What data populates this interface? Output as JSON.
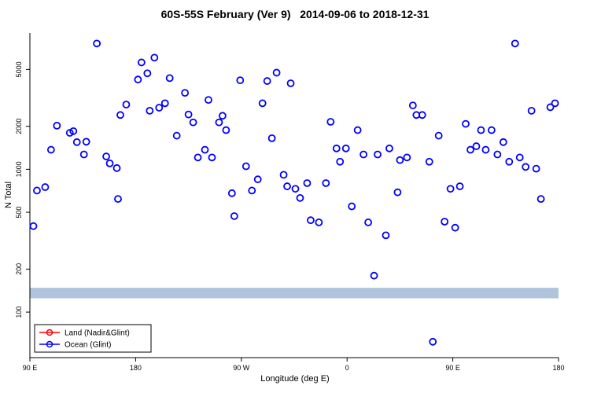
{
  "chart_data": {
    "type": "scatter",
    "title": "60S-55S February (Ver 9)   2014-09-06 to 2018-12-31",
    "xlabel": "Longitude (deg E)",
    "ylabel": "N Total",
    "x_scale": "linear (longitude unwrapped eastward from 90E)",
    "xlim": [
      90,
      540
    ],
    "x_ticks": [
      {
        "value": 90,
        "label": "90 E"
      },
      {
        "value": 180,
        "label": "180"
      },
      {
        "value": 270,
        "label": "90 W"
      },
      {
        "value": 360,
        "label": "0"
      },
      {
        "value": 450,
        "label": "90 E"
      },
      {
        "value": 540,
        "label": "180"
      }
    ],
    "y_scale": "log",
    "ylim": [
      48,
      9000
    ],
    "y_ticks": [
      100,
      200,
      500,
      1000,
      2000,
      5000
    ],
    "grid": false,
    "band": {
      "y_min": 125,
      "y_max": 148,
      "color": "#b0c4de"
    },
    "legend": {
      "position": "bottom-left",
      "entries": [
        {
          "label": "Land (Nadir&Glint)",
          "color": "#ff0000",
          "marker": "open-circle-on-line"
        },
        {
          "label": "Ocean (Glint)",
          "color": "#0000ff",
          "marker": "open-circle-on-line"
        }
      ]
    },
    "series": [
      {
        "name": "Land (Nadir&Glint)",
        "color": "#ff0000",
        "points": []
      },
      {
        "name": "Ocean (Glint)",
        "color": "#0000ff",
        "points": [
          [
            93,
            400
          ],
          [
            96,
            710
          ],
          [
            103,
            750
          ],
          [
            108,
            1370
          ],
          [
            113,
            2020
          ],
          [
            124,
            1800
          ],
          [
            127,
            1850
          ],
          [
            130,
            1550
          ],
          [
            136,
            1270
          ],
          [
            138,
            1560
          ],
          [
            147,
            7600
          ],
          [
            155,
            1230
          ],
          [
            158,
            1100
          ],
          [
            164,
            1020
          ],
          [
            165,
            620
          ],
          [
            167,
            2400
          ],
          [
            172,
            2840
          ],
          [
            182,
            4250
          ],
          [
            185,
            5600
          ],
          [
            190,
            4700
          ],
          [
            192,
            2570
          ],
          [
            196,
            6050
          ],
          [
            200,
            2700
          ],
          [
            205,
            2900
          ],
          [
            209,
            4350
          ],
          [
            215,
            1720
          ],
          [
            222,
            3430
          ],
          [
            225,
            2420
          ],
          [
            229,
            2130
          ],
          [
            233,
            1210
          ],
          [
            239,
            1370
          ],
          [
            242,
            3060
          ],
          [
            245,
            1210
          ],
          [
            251,
            2130
          ],
          [
            254,
            2370
          ],
          [
            257,
            1880
          ],
          [
            262,
            680
          ],
          [
            264,
            470
          ],
          [
            269,
            4200
          ],
          [
            274,
            1050
          ],
          [
            279,
            710
          ],
          [
            284,
            850
          ],
          [
            288,
            2900
          ],
          [
            292,
            4150
          ],
          [
            296,
            1650
          ],
          [
            300,
            4750
          ],
          [
            306,
            915
          ],
          [
            309,
            760
          ],
          [
            312,
            4000
          ],
          [
            316,
            730
          ],
          [
            320,
            630
          ],
          [
            326,
            800
          ],
          [
            329,
            440
          ],
          [
            336,
            425
          ],
          [
            342,
            800
          ],
          [
            346,
            2150
          ],
          [
            351,
            1400
          ],
          [
            354,
            1130
          ],
          [
            359,
            1400
          ],
          [
            364,
            550
          ],
          [
            369,
            1880
          ],
          [
            374,
            1270
          ],
          [
            378,
            425
          ],
          [
            383,
            180
          ],
          [
            386,
            1270
          ],
          [
            393,
            345
          ],
          [
            396,
            1400
          ],
          [
            403,
            690
          ],
          [
            405,
            1160
          ],
          [
            411,
            1210
          ],
          [
            416,
            2800
          ],
          [
            419,
            2400
          ],
          [
            424,
            2400
          ],
          [
            430,
            1130
          ],
          [
            433,
            62
          ],
          [
            438,
            1720
          ],
          [
            443,
            430
          ],
          [
            448,
            730
          ],
          [
            452,
            390
          ],
          [
            456,
            760
          ],
          [
            461,
            2080
          ],
          [
            465,
            1370
          ],
          [
            470,
            1450
          ],
          [
            474,
            1880
          ],
          [
            478,
            1370
          ],
          [
            483,
            1880
          ],
          [
            488,
            1270
          ],
          [
            493,
            1550
          ],
          [
            498,
            1130
          ],
          [
            503,
            7600
          ],
          [
            507,
            1210
          ],
          [
            512,
            1040
          ],
          [
            517,
            2570
          ],
          [
            521,
            1010
          ],
          [
            525,
            620
          ],
          [
            533,
            2720
          ],
          [
            537,
            2900
          ]
        ]
      }
    ]
  }
}
